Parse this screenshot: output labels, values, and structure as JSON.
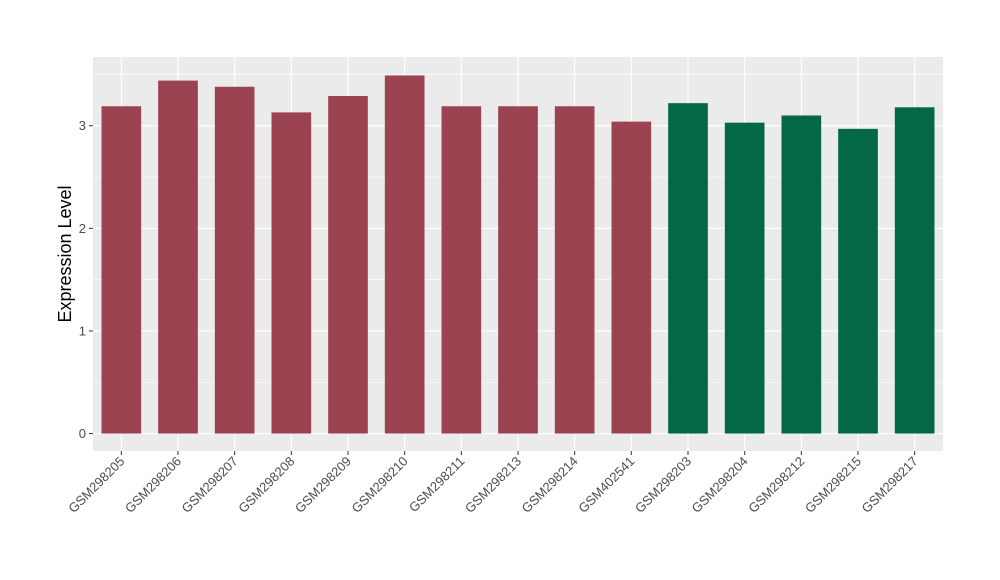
{
  "chart_data": {
    "type": "bar",
    "title": "",
    "xlabel": "",
    "ylabel": "Expression Level",
    "ylim": [
      -0.17,
      3.67
    ],
    "yticks": [
      0,
      1,
      2,
      3
    ],
    "ytick_labels": [
      "0",
      "1",
      "2",
      "3"
    ],
    "grid": true,
    "legend": "none",
    "categories": [
      "GSM298205",
      "GSM298206",
      "GSM298207",
      "GSM298208",
      "GSM298209",
      "GSM298210",
      "GSM298211",
      "GSM298213",
      "GSM298214",
      "GSM402541",
      "GSM298203",
      "GSM298204",
      "GSM298212",
      "GSM298215",
      "GSM298217"
    ],
    "values": [
      3.19,
      3.44,
      3.38,
      3.13,
      3.29,
      3.49,
      3.19,
      3.19,
      3.19,
      3.04,
      3.22,
      3.03,
      3.1,
      2.97,
      3.18
    ],
    "group_colors": [
      "#9b4350",
      "#9b4350",
      "#9b4350",
      "#9b4350",
      "#9b4350",
      "#9b4350",
      "#9b4350",
      "#9b4350",
      "#9b4350",
      "#9b4350",
      "#046746",
      "#046746",
      "#046746",
      "#046746",
      "#046746"
    ],
    "panel_background": "#ebebeb",
    "gridline_color": "#ffffff"
  }
}
